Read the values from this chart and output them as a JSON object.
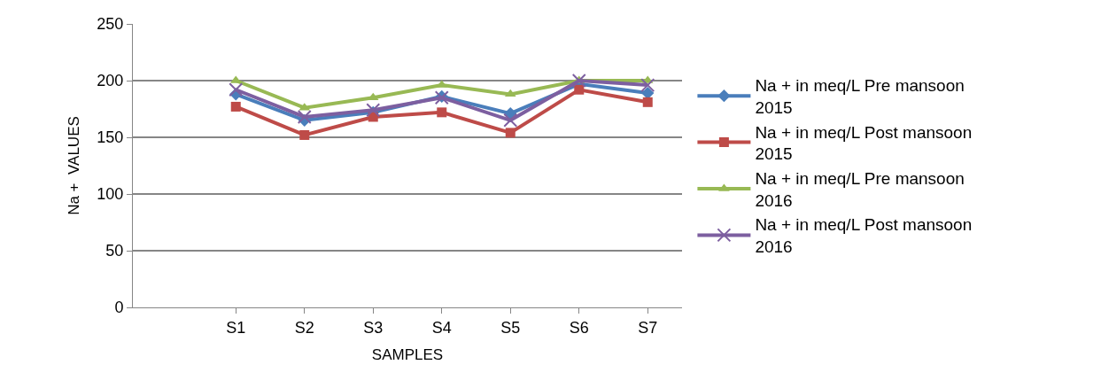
{
  "chart_data": {
    "type": "line",
    "xlabel": "SAMPLES",
    "ylabel": "Na +  VALUES",
    "categories": [
      null,
      "S1",
      "S2",
      "S3",
      "S4",
      "S5",
      "S6",
      "S7"
    ],
    "series": [
      {
        "name": "Na + in meq/L Pre mansoon 2015",
        "color": "#4a7ebb",
        "marker": "diamond",
        "values": [
          null,
          188,
          165,
          172,
          186,
          171,
          197,
          189
        ]
      },
      {
        "name": "Na + in meq/L Post mansoon 2015",
        "color": "#be4b48",
        "marker": "square",
        "values": [
          null,
          177,
          152,
          168,
          172,
          154,
          192,
          181
        ]
      },
      {
        "name": "Na + in meq/L Pre mansoon 2016",
        "color": "#98b954",
        "marker": "triangle",
        "values": [
          null,
          200,
          176,
          185,
          196,
          188,
          200,
          200
        ]
      },
      {
        "name": "Na + in meq/L Post mansoon 2016",
        "color": "#7d5fa0",
        "marker": "cross",
        "values": [
          null,
          192,
          168,
          174,
          185,
          165,
          200,
          196
        ]
      }
    ],
    "ylim": [
      0,
      250
    ],
    "yticks": [
      0,
      50,
      100,
      150,
      200,
      250
    ],
    "grid": "y",
    "legend": "right"
  }
}
